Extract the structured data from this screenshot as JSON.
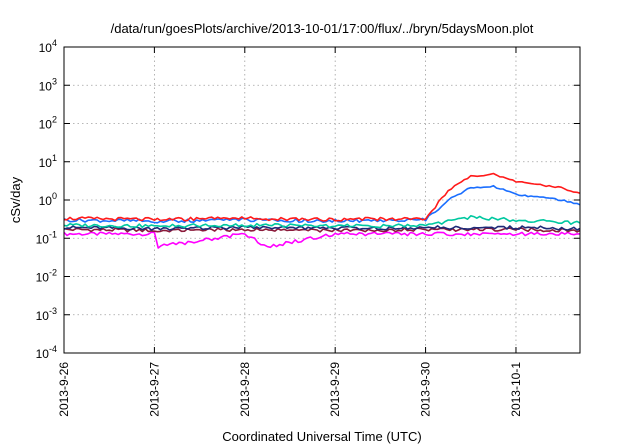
{
  "chart_data": {
    "type": "line",
    "title": "/data/run/goesPlots/archive/2013-10-01/17:00/flux/../bryn/5daysMoon.plot",
    "xlabel": "Coordinated Universal Time (UTC)",
    "ylabel": "cSv/day",
    "yscale": "log",
    "ylim": [
      0.0001,
      10000
    ],
    "yticks": [
      {
        "value": 0.0001,
        "base": "10",
        "exp": "-4"
      },
      {
        "value": 0.001,
        "base": "10",
        "exp": "-3"
      },
      {
        "value": 0.01,
        "base": "10",
        "exp": "-2"
      },
      {
        "value": 0.1,
        "base": "10",
        "exp": "-1"
      },
      {
        "value": 1,
        "base": "10",
        "exp": "0"
      },
      {
        "value": 10,
        "base": "10",
        "exp": "1"
      },
      {
        "value": 100,
        "base": "10",
        "exp": "2"
      },
      {
        "value": 1000,
        "base": "10",
        "exp": "3"
      },
      {
        "value": 10000,
        "base": "10",
        "exp": "4"
      }
    ],
    "xlim": [
      "2013-09-26",
      "2013-10-01T17:00"
    ],
    "xticks": [
      "2013-9-26",
      "2013-9-27",
      "2013-9-28",
      "2013-9-29",
      "2013-9-30",
      "2013-10-1"
    ],
    "grid": true,
    "series": [
      {
        "color": "#ff00ff",
        "x": [
          "2013-09-26",
          "2013-09-27",
          "2013-09-27T01:00",
          "2013-09-28",
          "2013-09-28T06:00",
          "2013-09-29",
          "2013-09-30",
          "2013-10-01",
          "2013-10-01T17:00"
        ],
        "y": [
          0.13,
          0.13,
          0.06,
          0.13,
          0.06,
          0.13,
          0.13,
          0.13,
          0.13
        ]
      },
      {
        "color": "#8b1a3a",
        "x": [
          "2013-09-26",
          "2013-09-27",
          "2013-09-28",
          "2013-09-29",
          "2013-09-30",
          "2013-10-01",
          "2013-10-01T17:00"
        ],
        "y": [
          0.17,
          0.16,
          0.17,
          0.16,
          0.17,
          0.17,
          0.16
        ]
      },
      {
        "color": "#1e2a78",
        "x": [
          "2013-09-26",
          "2013-09-27",
          "2013-09-28",
          "2013-09-29",
          "2013-09-30",
          "2013-10-01",
          "2013-10-01T17:00"
        ],
        "y": [
          0.19,
          0.18,
          0.19,
          0.18,
          0.19,
          0.19,
          0.18
        ]
      },
      {
        "color": "#00c8a0",
        "x": [
          "2013-09-26",
          "2013-09-27",
          "2013-09-28",
          "2013-09-29",
          "2013-09-30",
          "2013-09-30T06:00",
          "2013-09-30T12:00",
          "2013-10-01",
          "2013-10-01T17:00"
        ],
        "y": [
          0.22,
          0.21,
          0.22,
          0.21,
          0.21,
          0.28,
          0.35,
          0.3,
          0.25
        ]
      },
      {
        "color": "#1a6eff",
        "x": [
          "2013-09-26",
          "2013-09-27",
          "2013-09-28",
          "2013-09-29",
          "2013-09-30",
          "2013-09-30T06:00",
          "2013-09-30T12:00",
          "2013-09-30T18:00",
          "2013-10-01",
          "2013-10-01T12:00",
          "2013-10-01T17:00"
        ],
        "y": [
          0.3,
          0.28,
          0.3,
          0.28,
          0.3,
          1.0,
          2.1,
          2.3,
          1.4,
          1.0,
          0.75
        ]
      },
      {
        "color": "#ff1a1a",
        "x": [
          "2013-09-26",
          "2013-09-27",
          "2013-09-28",
          "2013-09-29",
          "2013-09-30",
          "2013-09-30T06:00",
          "2013-09-30T12:00",
          "2013-09-30T18:00",
          "2013-10-01",
          "2013-10-01T12:00",
          "2013-10-01T17:00"
        ],
        "y": [
          0.33,
          0.31,
          0.33,
          0.31,
          0.33,
          1.8,
          4.2,
          4.8,
          3.0,
          2.1,
          1.5
        ]
      }
    ]
  }
}
